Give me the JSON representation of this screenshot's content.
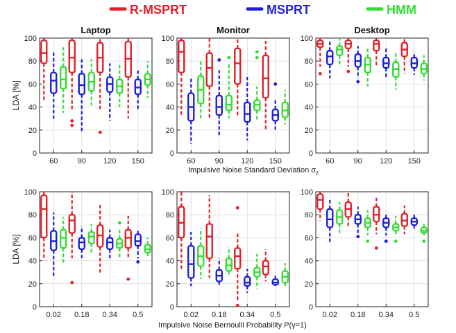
{
  "legend": [
    {
      "label": "R-MSPRT",
      "color": "#e0202a"
    },
    {
      "label": "MSPRT",
      "color": "#1f1fd6"
    },
    {
      "label": "HMM",
      "color": "#33dd33"
    }
  ],
  "row_xlabels": [
    "Impulsive Noise Standard Deviation σ",
    "Impulsive Noise Bernoulli Probability P(γ=1)"
  ],
  "xlabel_subscript": "z",
  "ylabel": "LDA [%]",
  "ylim": [
    0,
    100
  ],
  "yticks": [
    0,
    20,
    40,
    60,
    80,
    100
  ],
  "chart_data": [
    {
      "type": "box",
      "title": "Laptop",
      "ylabel": "LDA [%]",
      "ylim": [
        0,
        100
      ],
      "categories": [
        "60",
        "90",
        "120",
        "150"
      ],
      "series": [
        {
          "name": "R-MSPRT",
          "boxes": [
            {
              "whislo": 45,
              "q1": 78,
              "med": 87,
              "q3": 98,
              "whishi": 100,
              "fliers": []
            },
            {
              "whislo": 37,
              "q1": 70,
              "med": 83,
              "q3": 98,
              "whishi": 100,
              "fliers": [
                28,
                24
              ]
            },
            {
              "whislo": 38,
              "q1": 70,
              "med": 83,
              "q3": 96,
              "whishi": 100,
              "fliers": [
                18
              ]
            },
            {
              "whislo": 30,
              "q1": 66,
              "med": 82,
              "q3": 97,
              "whishi": 100,
              "fliers": []
            }
          ]
        },
        {
          "name": "MSPRT",
          "boxes": [
            {
              "whislo": 28,
              "q1": 52,
              "med": 63,
              "q3": 70,
              "whishi": 88,
              "fliers": []
            },
            {
              "whislo": 19,
              "q1": 51,
              "med": 59,
              "q3": 69,
              "whishi": 83,
              "fliers": []
            },
            {
              "whislo": 28,
              "q1": 53,
              "med": 60,
              "q3": 66,
              "whishi": 78,
              "fliers": []
            },
            {
              "whislo": 38,
              "q1": 51,
              "med": 57,
              "q3": 64,
              "whishi": 72,
              "fliers": []
            }
          ]
        },
        {
          "name": "HMM",
          "boxes": [
            {
              "whislo": 35,
              "q1": 56,
              "med": 64,
              "q3": 75,
              "whishi": 92,
              "fliers": []
            },
            {
              "whislo": 40,
              "q1": 54,
              "med": 62,
              "q3": 70,
              "whishi": 82,
              "fliers": []
            },
            {
              "whislo": 40,
              "q1": 52,
              "med": 58,
              "q3": 64,
              "whishi": 78,
              "fliers": []
            },
            {
              "whislo": 48,
              "q1": 59,
              "med": 64,
              "q3": 69,
              "whishi": 80,
              "fliers": []
            }
          ]
        }
      ]
    },
    {
      "type": "box",
      "title": "Monitor",
      "ylabel": "",
      "ylim": [
        0,
        100
      ],
      "categories": [
        "60",
        "90",
        "120",
        "150"
      ],
      "series": [
        {
          "name": "R-MSPRT",
          "boxes": [
            {
              "whislo": 32,
              "q1": 70,
              "med": 88,
              "q3": 98,
              "whishi": 100,
              "fliers": []
            },
            {
              "whislo": 30,
              "q1": 58,
              "med": 74,
              "q3": 87,
              "whishi": 100,
              "fliers": []
            },
            {
              "whislo": 32,
              "q1": 60,
              "med": 78,
              "q3": 91,
              "whishi": 100,
              "fliers": []
            },
            {
              "whislo": 20,
              "q1": 48,
              "med": 65,
              "q3": 85,
              "whishi": 100,
              "fliers": []
            }
          ]
        },
        {
          "name": "MSPRT",
          "boxes": [
            {
              "whislo": 8,
              "q1": 28,
              "med": 40,
              "q3": 52,
              "whishi": 65,
              "fliers": []
            },
            {
              "whislo": 15,
              "q1": 33,
              "med": 40,
              "q3": 50,
              "whishi": 72,
              "fliers": [
                81
              ]
            },
            {
              "whislo": 11,
              "q1": 27,
              "med": 34,
              "q3": 44,
              "whishi": 68,
              "fliers": []
            },
            {
              "whislo": 20,
              "q1": 28,
              "med": 33,
              "q3": 38,
              "whishi": 47,
              "fliers": [
                60
              ]
            }
          ]
        },
        {
          "name": "HMM",
          "boxes": [
            {
              "whislo": 30,
              "q1": 43,
              "med": 55,
              "q3": 67,
              "whishi": 80,
              "fliers": []
            },
            {
              "whislo": 30,
              "q1": 37,
              "med": 42,
              "q3": 50,
              "whishi": 78,
              "fliers": [
                83
              ]
            },
            {
              "whislo": 28,
              "q1": 37,
              "med": 42,
              "q3": 46,
              "whishi": 58,
              "fliers": [
                83,
                88
              ]
            },
            {
              "whislo": 25,
              "q1": 31,
              "med": 37,
              "q3": 44,
              "whishi": 55,
              "fliers": []
            }
          ]
        }
      ]
    },
    {
      "type": "box",
      "title": "Desktop",
      "ylabel": "",
      "ylim": [
        0,
        100
      ],
      "categories": [
        "60",
        "90",
        "120",
        "150"
      ],
      "series": [
        {
          "name": "R-MSPRT",
          "boxes": [
            {
              "whislo": 75,
              "q1": 92,
              "med": 95,
              "q3": 98,
              "whishi": 100,
              "fliers": [
                69
              ]
            },
            {
              "whislo": 75,
              "q1": 91,
              "med": 95,
              "q3": 98,
              "whishi": 100,
              "fliers": [
                71
              ]
            },
            {
              "whislo": 75,
              "q1": 89,
              "med": 95,
              "q3": 98,
              "whishi": 100,
              "fliers": []
            },
            {
              "whislo": 69,
              "q1": 84,
              "med": 90,
              "q3": 96,
              "whishi": 100,
              "fliers": []
            }
          ]
        },
        {
          "name": "MSPRT",
          "boxes": [
            {
              "whislo": 65,
              "q1": 77,
              "med": 84,
              "q3": 89,
              "whishi": 97,
              "fliers": []
            },
            {
              "whislo": 65,
              "q1": 75,
              "med": 80,
              "q3": 86,
              "whishi": 93,
              "fliers": [
                62
              ]
            },
            {
              "whislo": 66,
              "q1": 74,
              "med": 78,
              "q3": 83,
              "whishi": 91,
              "fliers": []
            },
            {
              "whislo": 68,
              "q1": 74,
              "med": 78,
              "q3": 83,
              "whishi": 88,
              "fliers": []
            }
          ]
        },
        {
          "name": "HMM",
          "boxes": [
            {
              "whislo": 75,
              "q1": 85,
              "med": 90,
              "q3": 93,
              "whishi": 100,
              "fliers": []
            },
            {
              "whislo": 58,
              "q1": 70,
              "med": 77,
              "q3": 83,
              "whishi": 92,
              "fliers": []
            },
            {
              "whislo": 55,
              "q1": 66,
              "med": 73,
              "q3": 79,
              "whishi": 87,
              "fliers": []
            },
            {
              "whislo": 63,
              "q1": 69,
              "med": 73,
              "q3": 78,
              "whishi": 85,
              "fliers": []
            }
          ]
        }
      ]
    },
    {
      "type": "box",
      "title": "",
      "ylabel": "LDA [%]",
      "ylim": [
        0,
        100
      ],
      "categories": [
        "0.02",
        "0.18",
        "0.34",
        "0.5"
      ],
      "series": [
        {
          "name": "R-MSPRT",
          "boxes": [
            {
              "whislo": 42,
              "q1": 60,
              "med": 85,
              "q3": 97,
              "whishi": 100,
              "fliers": []
            },
            {
              "whislo": 42,
              "q1": 64,
              "med": 75,
              "q3": 80,
              "whishi": 100,
              "fliers": [
                21
              ]
            },
            {
              "whislo": 28,
              "q1": 52,
              "med": 62,
              "q3": 71,
              "whishi": 90,
              "fliers": []
            },
            {
              "whislo": 42,
              "q1": 51,
              "med": 60,
              "q3": 67,
              "whishi": 79,
              "fliers": [
                24
              ]
            }
          ]
        },
        {
          "name": "MSPRT",
          "boxes": [
            {
              "whislo": 25,
              "q1": 49,
              "med": 57,
              "q3": 66,
              "whishi": 82,
              "fliers": []
            },
            {
              "whislo": 42,
              "q1": 50,
              "med": 56,
              "q3": 60,
              "whishi": 70,
              "fliers": []
            },
            {
              "whislo": 42,
              "q1": 50,
              "med": 56,
              "q3": 60,
              "whishi": 67,
              "fliers": []
            },
            {
              "whislo": 42,
              "q1": 53,
              "med": 57,
              "q3": 63,
              "whishi": 68,
              "fliers": [
                39
              ]
            }
          ]
        },
        {
          "name": "HMM",
          "boxes": [
            {
              "whislo": 37,
              "q1": 51,
              "med": 60,
              "q3": 67,
              "whishi": 78,
              "fliers": []
            },
            {
              "whislo": 46,
              "q1": 55,
              "med": 61,
              "q3": 65,
              "whishi": 72,
              "fliers": []
            },
            {
              "whislo": 42,
              "q1": 51,
              "med": 55,
              "q3": 59,
              "whishi": 68,
              "fliers": [
                73
              ]
            },
            {
              "whislo": 42,
              "q1": 47,
              "med": 50,
              "q3": 54,
              "whishi": 60,
              "fliers": []
            }
          ]
        }
      ]
    },
    {
      "type": "box",
      "title": "",
      "ylabel": "",
      "ylim": [
        0,
        100
      ],
      "categories": [
        "0.02",
        "0.18",
        "0.34",
        "0.5"
      ],
      "series": [
        {
          "name": "R-MSPRT",
          "boxes": [
            {
              "whislo": 32,
              "q1": 60,
              "med": 73,
              "q3": 87,
              "whishi": 100,
              "fliers": []
            },
            {
              "whislo": 25,
              "q1": 42,
              "med": 61,
              "q3": 72,
              "whishi": 97,
              "fliers": []
            },
            {
              "whislo": 5,
              "q1": 33,
              "med": 44,
              "q3": 51,
              "whishi": 65,
              "fliers": [
                86,
                1
              ]
            },
            {
              "whislo": 22,
              "q1": 28,
              "med": 35,
              "q3": 40,
              "whishi": 50,
              "fliers": []
            }
          ]
        },
        {
          "name": "MSPRT",
          "boxes": [
            {
              "whislo": 18,
              "q1": 25,
              "med": 37,
              "q3": 53,
              "whishi": 65,
              "fliers": []
            },
            {
              "whislo": 18,
              "q1": 22,
              "med": 27,
              "q3": 32,
              "whishi": 42,
              "fliers": []
            },
            {
              "whislo": 12,
              "q1": 18,
              "med": 21,
              "q3": 26,
              "whishi": 33,
              "fliers": []
            },
            {
              "whislo": 18,
              "q1": 19,
              "med": 21,
              "q3": 24,
              "whishi": 29,
              "fliers": []
            }
          ]
        },
        {
          "name": "HMM",
          "boxes": [
            {
              "whislo": 24,
              "q1": 35,
              "med": 44,
              "q3": 53,
              "whishi": 68,
              "fliers": []
            },
            {
              "whislo": 26,
              "q1": 31,
              "med": 36,
              "q3": 42,
              "whishi": 52,
              "fliers": []
            },
            {
              "whislo": 16,
              "q1": 26,
              "med": 30,
              "q3": 34,
              "whishi": 46,
              "fliers": []
            },
            {
              "whislo": 18,
              "q1": 21,
              "med": 26,
              "q3": 31,
              "whishi": 38,
              "fliers": []
            }
          ]
        }
      ]
    },
    {
      "type": "box",
      "title": "",
      "ylabel": "",
      "ylim": [
        0,
        100
      ],
      "categories": [
        "0.02",
        "0.18",
        "0.34",
        "0.5"
      ],
      "series": [
        {
          "name": "R-MSPRT",
          "boxes": [
            {
              "whislo": 75,
              "q1": 85,
              "med": 93,
              "q3": 98,
              "whishi": 100,
              "fliers": []
            },
            {
              "whislo": 69,
              "q1": 78,
              "med": 85,
              "q3": 91,
              "whishi": 100,
              "fliers": []
            },
            {
              "whislo": 63,
              "q1": 74,
              "med": 80,
              "q3": 87,
              "whishi": 95,
              "fliers": [
                51
              ]
            },
            {
              "whislo": 63,
              "q1": 70,
              "med": 75,
              "q3": 81,
              "whishi": 88,
              "fliers": []
            }
          ]
        },
        {
          "name": "MSPRT",
          "boxes": [
            {
              "whislo": 56,
              "q1": 69,
              "med": 76,
              "q3": 85,
              "whishi": 93,
              "fliers": []
            },
            {
              "whislo": 64,
              "q1": 72,
              "med": 76,
              "q3": 80,
              "whishi": 87,
              "fliers": [
                61
              ]
            },
            {
              "whislo": 62,
              "q1": 69,
              "med": 73,
              "q3": 77,
              "whishi": 82,
              "fliers": [
                57
              ]
            },
            {
              "whislo": 68,
              "q1": 71,
              "med": 74,
              "q3": 77,
              "whishi": 80,
              "fliers": []
            }
          ]
        },
        {
          "name": "HMM",
          "boxes": [
            {
              "whislo": 64,
              "q1": 72,
              "med": 78,
              "q3": 84,
              "whishi": 91,
              "fliers": []
            },
            {
              "whislo": 62,
              "q1": 69,
              "med": 73,
              "q3": 77,
              "whishi": 84,
              "fliers": [
                57
              ]
            },
            {
              "whislo": 62,
              "q1": 66,
              "med": 69,
              "q3": 72,
              "whishi": 79,
              "fliers": [
                57
              ]
            },
            {
              "whislo": 62,
              "q1": 64,
              "med": 66,
              "q3": 69,
              "whishi": 72,
              "fliers": [
                57
              ]
            }
          ]
        }
      ]
    }
  ]
}
